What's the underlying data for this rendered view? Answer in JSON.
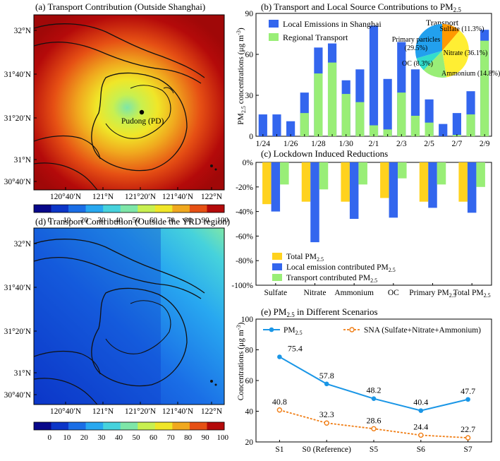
{
  "map_a": {
    "title": "(a) Transport Contribution (Outside Shanghai)",
    "lat_labels": [
      "32°N",
      "31°40′N",
      "31°20′N",
      "31°N",
      "30°40′N"
    ],
    "lon_labels": [
      "120°40′N",
      "121°N",
      "121°20′N",
      "121°40′N",
      "122°N"
    ],
    "site_label": "Pudong (PD)",
    "colorbar_ticks": [
      "0",
      "10",
      "20",
      "30",
      "40",
      "50",
      "60",
      "70",
      "80",
      "90",
      "100"
    ],
    "colorbar_colors": [
      "#08088a",
      "#0c36c8",
      "#1a6ee6",
      "#28a8f0",
      "#46d2dc",
      "#7ee6a8",
      "#c8f050",
      "#f0e628",
      "#f0a81e",
      "#e65014",
      "#b40a0a"
    ]
  },
  "map_d": {
    "title": "(d) Transport Contribution (Outside the YRD region)",
    "lat_labels": [
      "32°N",
      "31°40′N",
      "31°20′N",
      "31°N",
      "30°40′N"
    ],
    "lon_labels": [
      "120°40′N",
      "121°N",
      "121°20′N",
      "121°40′N",
      "122°N"
    ],
    "colorbar_ticks": [
      "0",
      "10",
      "20",
      "30",
      "40",
      "50",
      "60",
      "70",
      "80",
      "90",
      "100"
    ]
  },
  "chart_data": [
    {
      "type": "bar",
      "title": "(b) Transport and Local Source Contributions to PM",
      "title_sub": "2.5",
      "ylabel": "PM",
      "ylabel_sub": "2.5",
      "ylabel_tail": " concentrations (μg m",
      "ylabel_sup": "-3",
      "ylim": [
        0,
        90
      ],
      "yticks": [
        0,
        30,
        60,
        90
      ],
      "x_tick_labels": [
        "1/24",
        "1/26",
        "1/28",
        "1/30",
        "2/1",
        "2/3",
        "2/5",
        "2/7",
        "2/9"
      ],
      "categories": [
        "1/24",
        "1/25",
        "1/26",
        "1/27",
        "1/28",
        "1/29",
        "1/30",
        "1/31",
        "2/1",
        "2/2",
        "2/3",
        "2/4",
        "2/5",
        "2/6",
        "2/7",
        "2/8",
        "2/9"
      ],
      "series": [
        {
          "name": "Local Emissions in Shanghai",
          "color": "#3366ee",
          "values": [
            16,
            16,
            11,
            32,
            65,
            68,
            41,
            49,
            81,
            42,
            69,
            49,
            27,
            9,
            17,
            33,
            78
          ]
        },
        {
          "name": "Regional Transport",
          "color": "#99ee77",
          "values": [
            0,
            0,
            0,
            17,
            46,
            54,
            31,
            25,
            8,
            5,
            32,
            15,
            10,
            0,
            1,
            16,
            70
          ]
        }
      ],
      "inset_pie": {
        "title": "Transport",
        "slices": [
          {
            "label": "Sulfate (11.3%)",
            "value": 11.3,
            "color": "#ff9900"
          },
          {
            "label": "Nitrate (36.1%)",
            "value": 36.1,
            "color": "#ffee33"
          },
          {
            "label": "Ammonium (14.8%)",
            "value": 14.8,
            "color": "#99ee77"
          },
          {
            "label": "OC (8.3%)",
            "value": 8.3,
            "color": "#33ddcc"
          },
          {
            "label": "Primary particles (29.5%)",
            "value": 29.5,
            "color": "#22a0ee"
          }
        ]
      }
    },
    {
      "type": "bar",
      "title": "(c) Lockdown Induced Reductions",
      "ylim": [
        -100,
        0
      ],
      "yticks": [
        "0%",
        "-20%",
        "-40%",
        "-60%",
        "-80%",
        "-100%"
      ],
      "categories": [
        "Sulfate",
        "Nitrate",
        "Ammonium",
        "OC",
        "Primary PM",
        "Total PM"
      ],
      "category_subs": [
        "",
        "",
        "",
        "",
        "2.5",
        "2.5"
      ],
      "series": [
        {
          "name": "Total PM",
          "name_sub": "2.5",
          "color": "#ffd21e",
          "values": [
            -34,
            -32,
            -32,
            -29,
            -32,
            -32
          ]
        },
        {
          "name": "Local emission contributed PM",
          "name_sub": "2.5",
          "color": "#3366ee",
          "values": [
            -40,
            -65,
            -46,
            -45,
            -37,
            -41
          ]
        },
        {
          "name": "Transport contributed PM",
          "name_sub": "2.5",
          "color": "#99ee77",
          "values": [
            -18,
            -22,
            -18,
            -13,
            -18,
            -20
          ]
        }
      ]
    },
    {
      "type": "line",
      "title": "(e) PM",
      "title_sub": "2.5",
      "title_tail": " in Different Scenarios",
      "ylabel": "Concentrations (μg m",
      "ylabel_sup": "-3",
      "ylim": [
        20,
        100
      ],
      "yticks": [
        20,
        40,
        60,
        80,
        100
      ],
      "categories": [
        "S1",
        "S0 (Reference)",
        "S5",
        "S6",
        "S7"
      ],
      "series": [
        {
          "name": "PM",
          "name_sub": "2.5",
          "color": "#1a96e6",
          "values": [
            75.4,
            57.8,
            48.2,
            40.4,
            47.7
          ],
          "labels": [
            "75.4",
            "57.8",
            "48.2",
            "40.4",
            "47.7"
          ]
        },
        {
          "name": "SNA (Sulfate+Nitrate+Ammonium)",
          "color": "#f07d14",
          "values": [
            40.8,
            32.3,
            28.6,
            24.4,
            22.7
          ],
          "labels": [
            "40.8",
            "32.3",
            "28.6",
            "24.4",
            "22.7"
          ]
        }
      ]
    }
  ]
}
